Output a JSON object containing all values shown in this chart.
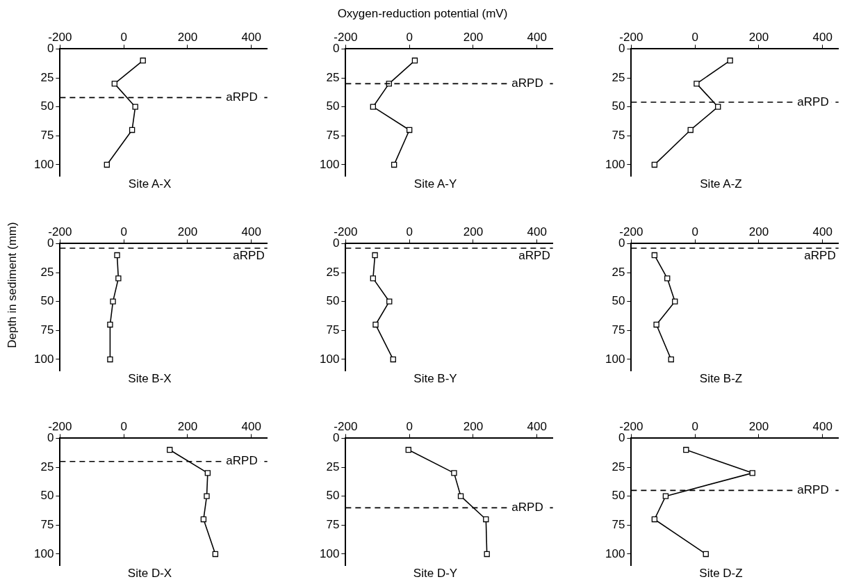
{
  "chart_data": [
    {
      "type": "line",
      "title": "Site A-X",
      "xlabel": "Oxygen-reduction potential (mV)",
      "x": [
        60,
        -29,
        36,
        26,
        -53
      ],
      "values": [
        10,
        30,
        50,
        70,
        100
      ],
      "color": "#000000",
      "marker": "square",
      "xlim": [
        -200,
        450
      ],
      "xticks": [
        -200,
        0,
        200,
        400
      ],
      "ylim": [
        110,
        0
      ],
      "yticks": [
        0,
        25,
        50,
        75,
        100
      ],
      "ref_lines": [
        {
          "axis": "y",
          "value": 42,
          "label": "aRPD",
          "line_style": "dashed"
        }
      ]
    },
    {
      "type": "line",
      "title": "Site A-Y",
      "x": [
        17,
        -64,
        -114,
        0,
        -48
      ],
      "values": [
        10,
        30,
        50,
        70,
        100
      ],
      "color": "#000000",
      "marker": "square",
      "xlim": [
        -200,
        450
      ],
      "xticks": [
        -200,
        0,
        200,
        400
      ],
      "ylim": [
        110,
        0
      ],
      "yticks": [
        0,
        25,
        50,
        75,
        100
      ],
      "ref_lines": [
        {
          "axis": "y",
          "value": 30,
          "label": "aRPD",
          "line_style": "dashed"
        }
      ]
    },
    {
      "type": "line",
      "title": "Site A-Z",
      "x": [
        110,
        5,
        72,
        -14,
        -127
      ],
      "values": [
        10,
        30,
        50,
        70,
        100
      ],
      "color": "#000000",
      "marker": "square",
      "xlim": [
        -200,
        450
      ],
      "xticks": [
        -200,
        0,
        200,
        400
      ],
      "ylim": [
        110,
        0
      ],
      "yticks": [
        0,
        25,
        50,
        75,
        100
      ],
      "ref_lines": [
        {
          "axis": "y",
          "value": 46,
          "label": "aRPD",
          "line_style": "dashed"
        }
      ]
    },
    {
      "type": "line",
      "title": "Site B-X",
      "ylabel": "Depth in sediment (mm)",
      "x": [
        -21,
        -17,
        -34,
        -43,
        -43
      ],
      "values": [
        10,
        30,
        50,
        70,
        100
      ],
      "color": "#000000",
      "marker": "square",
      "xlim": [
        -200,
        450
      ],
      "xticks": [
        -200,
        0,
        200,
        400
      ],
      "ylim": [
        110,
        0
      ],
      "yticks": [
        0,
        25,
        50,
        75,
        100
      ],
      "ref_lines": [
        {
          "axis": "y",
          "value": 4,
          "label": "aRPD",
          "line_style": "dashed"
        }
      ]
    },
    {
      "type": "line",
      "title": "Site B-Y",
      "x": [
        -108,
        -114,
        -63,
        -106,
        -51
      ],
      "values": [
        10,
        30,
        50,
        70,
        100
      ],
      "color": "#000000",
      "marker": "square",
      "xlim": [
        -200,
        450
      ],
      "xticks": [
        -200,
        0,
        200,
        400
      ],
      "ylim": [
        110,
        0
      ],
      "yticks": [
        0,
        25,
        50,
        75,
        100
      ],
      "ref_lines": [
        {
          "axis": "y",
          "value": 4,
          "label": "aRPD",
          "line_style": "dashed"
        }
      ]
    },
    {
      "type": "line",
      "title": "Site B-Z",
      "x": [
        -127,
        -87,
        -63,
        -121,
        -75
      ],
      "values": [
        10,
        30,
        50,
        70,
        100
      ],
      "color": "#000000",
      "marker": "square",
      "xlim": [
        -200,
        450
      ],
      "xticks": [
        -200,
        0,
        200,
        400
      ],
      "ylim": [
        110,
        0
      ],
      "yticks": [
        0,
        25,
        50,
        75,
        100
      ],
      "ref_lines": [
        {
          "axis": "y",
          "value": 4,
          "label": "aRPD",
          "line_style": "dashed"
        }
      ]
    },
    {
      "type": "line",
      "title": "Site D-X",
      "x": [
        144,
        263,
        260,
        250,
        287
      ],
      "values": [
        10,
        30,
        50,
        70,
        100
      ],
      "color": "#000000",
      "marker": "square",
      "xlim": [
        -200,
        450
      ],
      "xticks": [
        -200,
        0,
        200,
        400
      ],
      "ylim": [
        110,
        0
      ],
      "yticks": [
        0,
        25,
        50,
        75,
        100
      ],
      "ref_lines": [
        {
          "axis": "y",
          "value": 20,
          "label": "aRPD",
          "line_style": "dashed"
        }
      ]
    },
    {
      "type": "line",
      "title": "Site D-Y",
      "x": [
        -3,
        140,
        161,
        240,
        243
      ],
      "values": [
        10,
        30,
        50,
        70,
        100
      ],
      "color": "#000000",
      "marker": "square",
      "xlim": [
        -200,
        450
      ],
      "xticks": [
        -200,
        0,
        200,
        400
      ],
      "ylim": [
        110,
        0
      ],
      "yticks": [
        0,
        25,
        50,
        75,
        100
      ],
      "ref_lines": [
        {
          "axis": "y",
          "value": 60,
          "label": "aRPD",
          "line_style": "dashed"
        }
      ]
    },
    {
      "type": "line",
      "title": "Site D-Z",
      "x": [
        -28,
        180,
        -92,
        -127,
        34
      ],
      "values": [
        10,
        30,
        50,
        70,
        100
      ],
      "color": "#000000",
      "marker": "square",
      "xlim": [
        -200,
        450
      ],
      "xticks": [
        -200,
        0,
        200,
        400
      ],
      "ylim": [
        110,
        0
      ],
      "yticks": [
        0,
        25,
        50,
        75,
        100
      ],
      "ref_lines": [
        {
          "axis": "y",
          "value": 45,
          "label": "aRPD",
          "line_style": "dashed"
        }
      ]
    }
  ]
}
